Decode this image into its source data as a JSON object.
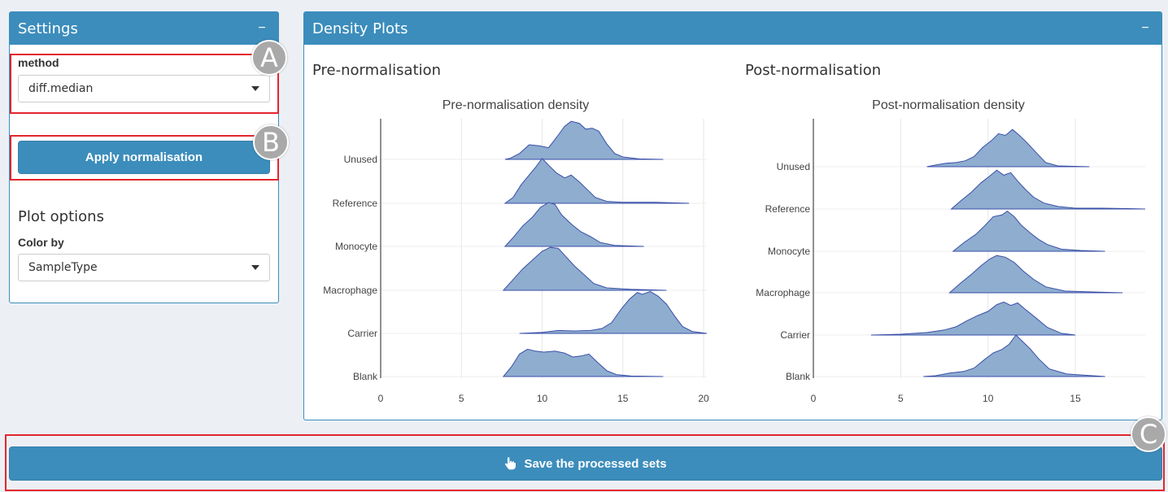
{
  "settings": {
    "title": "Settings",
    "collapse": "−",
    "method_label": "method",
    "method_value": "diff.median",
    "apply_label": "Apply normalisation",
    "plot_options_title": "Plot options",
    "color_by_label": "Color by",
    "color_by_value": "SampleType"
  },
  "density": {
    "title": "Density Plots",
    "collapse": "−",
    "pre_heading": "Pre-normalisation",
    "post_heading": "Post-normalisation"
  },
  "save_label": "Save the processed sets",
  "markers": [
    "A",
    "B",
    "C"
  ],
  "colors": {
    "primary": "#3c8dbc",
    "highlight": "#e3262e",
    "density_fill": "#8eadcf",
    "density_line": "#3a4fa8"
  },
  "chart_data": [
    {
      "type": "area",
      "title": "Pre-normalisation density",
      "xlabel": "",
      "ylabel": "",
      "xlim": [
        0,
        20.2
      ],
      "xticks": [
        0,
        5,
        10,
        15,
        20
      ],
      "categories": [
        "Unused",
        "Reference",
        "Monocyte",
        "Macrophage",
        "Carrier",
        "Blank"
      ],
      "series": [
        {
          "name": "Unused",
          "points": [
            [
              7.7,
              0
            ],
            [
              8,
              0.02
            ],
            [
              8.6,
              0.12
            ],
            [
              9.2,
              0.3
            ],
            [
              9.8,
              0.28
            ],
            [
              10.4,
              0.24
            ],
            [
              11,
              0.5
            ],
            [
              11.4,
              0.68
            ],
            [
              11.8,
              0.78
            ],
            [
              12.3,
              0.74
            ],
            [
              12.7,
              0.62
            ],
            [
              13.1,
              0.64
            ],
            [
              13.5,
              0.58
            ],
            [
              14,
              0.32
            ],
            [
              14.5,
              0.12
            ],
            [
              15,
              0.05
            ],
            [
              16,
              0.01
            ],
            [
              17.5,
              0
            ]
          ]
        },
        {
          "name": "Reference",
          "points": [
            [
              7.7,
              0
            ],
            [
              8.2,
              0.12
            ],
            [
              8.7,
              0.38
            ],
            [
              9.2,
              0.58
            ],
            [
              9.6,
              0.74
            ],
            [
              10,
              0.92
            ],
            [
              10.4,
              0.78
            ],
            [
              10.9,
              0.62
            ],
            [
              11.4,
              0.52
            ],
            [
              11.8,
              0.58
            ],
            [
              12.3,
              0.44
            ],
            [
              12.8,
              0.28
            ],
            [
              13.3,
              0.12
            ],
            [
              14,
              0.04
            ],
            [
              15,
              0.02
            ],
            [
              17,
              0.02
            ],
            [
              19.1,
              0
            ]
          ]
        },
        {
          "name": "Monocyte",
          "points": [
            [
              7.7,
              0
            ],
            [
              8.2,
              0.18
            ],
            [
              8.8,
              0.42
            ],
            [
              9.4,
              0.6
            ],
            [
              9.9,
              0.8
            ],
            [
              10.4,
              0.9
            ],
            [
              10.8,
              0.86
            ],
            [
              11.2,
              0.65
            ],
            [
              11.8,
              0.46
            ],
            [
              12.4,
              0.3
            ],
            [
              13,
              0.2
            ],
            [
              13.6,
              0.08
            ],
            [
              14.5,
              0.02
            ],
            [
              16.3,
              0
            ]
          ]
        },
        {
          "name": "Macrophage",
          "points": [
            [
              7.6,
              0
            ],
            [
              8.2,
              0.22
            ],
            [
              8.8,
              0.44
            ],
            [
              9.4,
              0.62
            ],
            [
              10,
              0.8
            ],
            [
              10.5,
              0.88
            ],
            [
              11,
              0.86
            ],
            [
              11.5,
              0.68
            ],
            [
              12,
              0.5
            ],
            [
              12.6,
              0.32
            ],
            [
              13.2,
              0.14
            ],
            [
              14,
              0.05
            ],
            [
              15.5,
              0.02
            ],
            [
              17.7,
              0
            ]
          ]
        },
        {
          "name": "Carrier",
          "points": [
            [
              8.6,
              0
            ],
            [
              10,
              0.02
            ],
            [
              11,
              0.06
            ],
            [
              12,
              0.05
            ],
            [
              13,
              0.06
            ],
            [
              13.7,
              0.1
            ],
            [
              14.3,
              0.22
            ],
            [
              14.9,
              0.5
            ],
            [
              15.4,
              0.7
            ],
            [
              15.9,
              0.84
            ],
            [
              16.2,
              0.8
            ],
            [
              16.7,
              0.86
            ],
            [
              17.2,
              0.76
            ],
            [
              17.7,
              0.6
            ],
            [
              18.2,
              0.36
            ],
            [
              18.7,
              0.14
            ],
            [
              19.3,
              0.04
            ],
            [
              20.2,
              0
            ]
          ]
        },
        {
          "name": "Blank",
          "points": [
            [
              7.6,
              0
            ],
            [
              8.1,
              0.2
            ],
            [
              8.6,
              0.46
            ],
            [
              9.1,
              0.56
            ],
            [
              9.6,
              0.52
            ],
            [
              10.1,
              0.5
            ],
            [
              10.8,
              0.52
            ],
            [
              11.4,
              0.48
            ],
            [
              11.9,
              0.4
            ],
            [
              12.4,
              0.42
            ],
            [
              12.9,
              0.46
            ],
            [
              13.4,
              0.3
            ],
            [
              14,
              0.12
            ],
            [
              14.6,
              0.04
            ],
            [
              15.5,
              0.01
            ],
            [
              17.5,
              0
            ]
          ]
        }
      ]
    },
    {
      "type": "area",
      "title": "Post-normalisation density",
      "xlabel": "",
      "ylabel": "",
      "xlim": [
        0,
        19
      ],
      "xticks": [
        0,
        5,
        10,
        15
      ],
      "categories": [
        "Unused",
        "Reference",
        "Monocyte",
        "Macrophage",
        "Carrier",
        "Blank"
      ],
      "series": [
        {
          "name": "Unused",
          "points": [
            [
              6.5,
              0
            ],
            [
              7,
              0.04
            ],
            [
              7.6,
              0.08
            ],
            [
              8.2,
              0.1
            ],
            [
              8.7,
              0.14
            ],
            [
              9.2,
              0.24
            ],
            [
              9.7,
              0.46
            ],
            [
              10.2,
              0.62
            ],
            [
              10.6,
              0.78
            ],
            [
              11,
              0.74
            ],
            [
              11.4,
              0.88
            ],
            [
              11.8,
              0.74
            ],
            [
              12.2,
              0.58
            ],
            [
              12.7,
              0.36
            ],
            [
              13.3,
              0.1
            ],
            [
              14,
              0.02
            ],
            [
              15.8,
              0
            ]
          ]
        },
        {
          "name": "Reference",
          "points": [
            [
              7.9,
              0
            ],
            [
              8.4,
              0.18
            ],
            [
              9,
              0.38
            ],
            [
              9.6,
              0.62
            ],
            [
              10.1,
              0.78
            ],
            [
              10.5,
              0.92
            ],
            [
              10.9,
              0.8
            ],
            [
              11.3,
              0.86
            ],
            [
              11.7,
              0.66
            ],
            [
              12.1,
              0.48
            ],
            [
              12.6,
              0.28
            ],
            [
              13.2,
              0.14
            ],
            [
              14,
              0.06
            ],
            [
              15,
              0.02
            ],
            [
              16.5,
              0.02
            ],
            [
              18,
              0.01
            ],
            [
              19,
              0
            ]
          ]
        },
        {
          "name": "Monocyte",
          "points": [
            [
              8,
              0
            ],
            [
              8.6,
              0.2
            ],
            [
              9.3,
              0.4
            ],
            [
              9.8,
              0.6
            ],
            [
              10.3,
              0.82
            ],
            [
              10.8,
              0.86
            ],
            [
              11.1,
              0.95
            ],
            [
              11.5,
              0.82
            ],
            [
              11.9,
              0.62
            ],
            [
              12.4,
              0.44
            ],
            [
              12.9,
              0.28
            ],
            [
              13.4,
              0.16
            ],
            [
              14.2,
              0.05
            ],
            [
              15.3,
              0.02
            ],
            [
              16.7,
              0
            ]
          ]
        },
        {
          "name": "Macrophage",
          "points": [
            [
              7.8,
              0
            ],
            [
              8.4,
              0.22
            ],
            [
              9,
              0.42
            ],
            [
              9.6,
              0.64
            ],
            [
              10.1,
              0.8
            ],
            [
              10.5,
              0.88
            ],
            [
              11,
              0.84
            ],
            [
              11.5,
              0.72
            ],
            [
              12,
              0.52
            ],
            [
              12.6,
              0.32
            ],
            [
              13.3,
              0.14
            ],
            [
              14.4,
              0.04
            ],
            [
              16,
              0.02
            ],
            [
              17.7,
              0
            ]
          ]
        },
        {
          "name": "Carrier",
          "points": [
            [
              3.3,
              0
            ],
            [
              5,
              0.02
            ],
            [
              6.5,
              0.06
            ],
            [
              7.5,
              0.12
            ],
            [
              8.2,
              0.2
            ],
            [
              8.8,
              0.34
            ],
            [
              9.4,
              0.46
            ],
            [
              10,
              0.56
            ],
            [
              10.5,
              0.72
            ],
            [
              10.9,
              0.78
            ],
            [
              11.3,
              0.7
            ],
            [
              11.7,
              0.76
            ],
            [
              12.1,
              0.62
            ],
            [
              12.7,
              0.42
            ],
            [
              13.4,
              0.18
            ],
            [
              14.2,
              0.04
            ],
            [
              15,
              0
            ]
          ]
        },
        {
          "name": "Blank",
          "points": [
            [
              6.3,
              0
            ],
            [
              7,
              0.02
            ],
            [
              7.8,
              0.08
            ],
            [
              8.6,
              0.12
            ],
            [
              9.2,
              0.2
            ],
            [
              9.8,
              0.4
            ],
            [
              10.3,
              0.56
            ],
            [
              10.8,
              0.64
            ],
            [
              11.2,
              0.76
            ],
            [
              11.6,
              0.98
            ],
            [
              12,
              0.82
            ],
            [
              12.4,
              0.66
            ],
            [
              12.9,
              0.42
            ],
            [
              13.5,
              0.18
            ],
            [
              14.5,
              0.06
            ],
            [
              16.7,
              0
            ]
          ]
        }
      ]
    }
  ]
}
